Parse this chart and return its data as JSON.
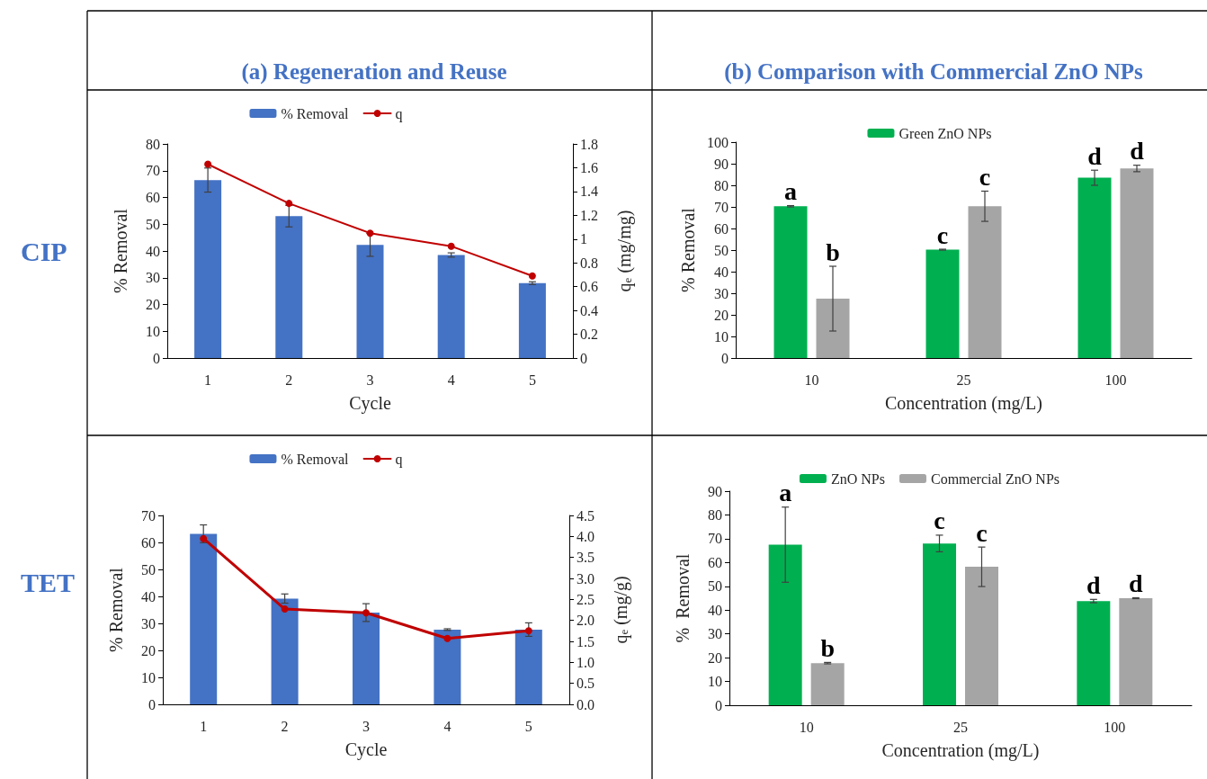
{
  "chart_data": [
    {
      "type": "bar",
      "title": "(a) Regeneration and Reuse",
      "annotations": [
        "CIP"
      ],
      "categories": [
        "1",
        "2",
        "3",
        "4",
        "5"
      ],
      "xlabel": "Cycle",
      "ylabel": "% Removal",
      "y2label": "q$_{e}$ (mg/mg)",
      "ylim": [
        0,
        80
      ],
      "yticks": [
        0,
        10,
        20,
        30,
        40,
        50,
        60,
        70,
        80
      ],
      "y2lim": [
        0,
        1.8
      ],
      "y2ticks": [
        0,
        0.2,
        0.4,
        0.6,
        0.8,
        1,
        1.2,
        1.4,
        1.6,
        1.8
      ],
      "legend": "top",
      "grid": false,
      "series": [
        {
          "name": "% Removal",
          "color": "#4472c4",
          "values": [
            66.5,
            53,
            42.3,
            38.5,
            28
          ],
          "errors": [
            4.5,
            4,
            4.3,
            0.8,
            0.5
          ]
        },
        {
          "name": "q",
          "type": "line",
          "axis": "y2",
          "color": "#c00000",
          "marker": "circle",
          "line_style": "solid",
          "values": [
            1.63,
            1.3,
            1.05,
            0.94,
            0.69
          ]
        }
      ]
    },
    {
      "type": "bar",
      "title": "(b) Comparison with Commercial ZnO NPs",
      "categories": [
        "10",
        "25",
        "100"
      ],
      "xlabel": "Concentration (mg/L)",
      "ylabel": "% Removal",
      "ylim": [
        0,
        100
      ],
      "yticks": [
        0,
        10,
        20,
        30,
        40,
        50,
        60,
        70,
        80,
        90,
        100
      ],
      "legend": "top",
      "grid": false,
      "series": [
        {
          "name": "Green ZnO NPs",
          "color": "#00b050",
          "values": [
            70.3,
            50.2,
            83.5
          ],
          "errors": [
            0.3,
            0.2,
            3.5
          ],
          "value_labels": [
            "a",
            "c",
            "d"
          ]
        },
        {
          "color": "#a5a5a5",
          "values": [
            27.5,
            70.3,
            87.8
          ],
          "errors": [
            15,
            7,
            1.5
          ],
          "value_labels": [
            "b",
            "c",
            "d"
          ]
        }
      ]
    },
    {
      "type": "bar",
      "annotations": [
        "TET"
      ],
      "categories": [
        "1",
        "2",
        "3",
        "4",
        "5"
      ],
      "xlabel": "Cycle",
      "ylabel": "% Removal",
      "y2label": "q$_{e}$ (mg/g)",
      "ylim": [
        0,
        70
      ],
      "yticks": [
        0,
        10,
        20,
        30,
        40,
        50,
        60,
        70
      ],
      "y2lim": [
        0,
        4.5
      ],
      "y2ticks": [
        {
          "value": 0,
          "label": "0.0"
        },
        0.5,
        {
          "value": 1,
          "label": "1.0"
        },
        1.5,
        {
          "value": 2,
          "label": "2.0"
        },
        2.5,
        {
          "value": 3,
          "label": "3.0"
        },
        3.5,
        {
          "value": 4,
          "label": "4.0"
        },
        4.5
      ],
      "legend": "top",
      "grid": false,
      "series": [
        {
          "name": "% Removal",
          "color": "#4472c4",
          "values": [
            63.2,
            39.2,
            34,
            27.7,
            27.7
          ],
          "errors": [
            3.3,
            1.7,
            3.3,
            0.3,
            2.5
          ]
        },
        {
          "name": "q",
          "type": "line",
          "axis": "y2",
          "color": "#c00000",
          "marker": "circle",
          "line_style": "solid",
          "values": [
            3.95,
            2.27,
            2.18,
            1.57,
            1.75
          ]
        }
      ]
    },
    {
      "type": "bar",
      "categories": [
        "10",
        "25",
        "100"
      ],
      "xlabel": "Concentration (mg/L)",
      "ylabel": "%  Removal",
      "ylim": [
        0,
        90
      ],
      "yticks": [
        0,
        10,
        20,
        30,
        40,
        50,
        60,
        70,
        80,
        90
      ],
      "legend": "top",
      "grid": false,
      "series": [
        {
          "name": "ZnO NPs",
          "color": "#00b050",
          "values": [
            67.5,
            68,
            43.8
          ],
          "errors": [
            15.8,
            3.5,
            0.7
          ],
          "value_labels": [
            "a",
            "c",
            "d"
          ]
        },
        {
          "name": "Commercial ZnO NPs",
          "color": "#a5a5a5",
          "values": [
            17.7,
            58.2,
            45
          ],
          "errors": [
            0.3,
            8.3,
            0.2
          ],
          "value_labels": [
            "b",
            "c",
            "d"
          ]
        }
      ]
    }
  ]
}
